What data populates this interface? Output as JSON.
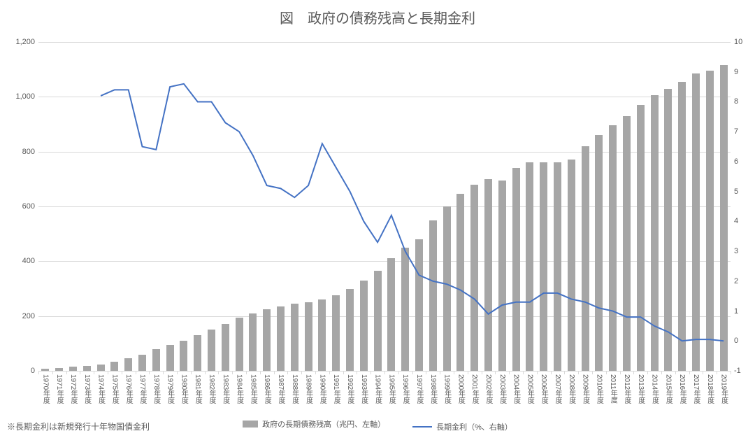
{
  "title": "図　政府の債務残高と長期金利",
  "footnote": "※長期金利は新規発行十年物国債金利",
  "legend": {
    "bar_label": "政府の長期債務残高（兆円、左軸）",
    "line_label": "長期金利（%、右軸）"
  },
  "chart": {
    "type": "bar+line",
    "background_color": "#ffffff",
    "grid_color": "#d9d9d9",
    "text_color": "#595959",
    "bar_color": "#a6a6a6",
    "line_color": "#4472c4",
    "line_width": 2,
    "bar_width_ratio": 0.55,
    "title_fontsize": 20,
    "axis_fontsize": 11,
    "xlabel_fontsize": 10,
    "y_left": {
      "min": 0,
      "max": 1200,
      "step": 200
    },
    "y_right": {
      "min": -1,
      "max": 10,
      "step": 1
    },
    "categories": [
      "1970年度",
      "1971年度",
      "1972年度",
      "1973年度",
      "1974年度",
      "1975年度",
      "1976年度",
      "1977年度",
      "1978年度",
      "1979年度",
      "1980年度",
      "1981年度",
      "1982年度",
      "1983年度",
      "1984年度",
      "1985年度",
      "1986年度",
      "1987年度",
      "1988年度",
      "1989年度",
      "1990年度",
      "1991年度",
      "1992年度",
      "1993年度",
      "1994年度",
      "1995年度",
      "1996年度",
      "1997年度",
      "1998年度",
      "1999年度",
      "2000年度",
      "2001年度",
      "2002年度",
      "2003年度",
      "2004年度",
      "2005年度",
      "2006年度",
      "2007年度",
      "2008年度",
      "2009年度",
      "2010年度",
      "2011年度",
      "2012年度",
      "2013年度",
      "2014年度",
      "2015年度",
      "2016年度",
      "2017年度",
      "2018年度",
      "2019年度"
    ],
    "bar_values": [
      8,
      10,
      15,
      18,
      22,
      32,
      45,
      60,
      80,
      95,
      110,
      130,
      150,
      170,
      195,
      210,
      225,
      235,
      245,
      250,
      260,
      275,
      300,
      330,
      365,
      410,
      450,
      480,
      550,
      600,
      645,
      680,
      700,
      695,
      740,
      760,
      760,
      760,
      770,
      820,
      860,
      895,
      930,
      970,
      1005,
      1030,
      1055,
      1085,
      1095,
      1115
    ],
    "line_values": [
      null,
      null,
      null,
      null,
      8.2,
      8.4,
      8.4,
      6.5,
      6.4,
      8.5,
      8.6,
      8.0,
      8.0,
      7.3,
      7.0,
      6.2,
      5.2,
      5.1,
      4.8,
      5.2,
      6.6,
      5.8,
      5.0,
      4.0,
      3.3,
      4.2,
      3.0,
      2.2,
      2.0,
      1.9,
      1.7,
      1.4,
      0.9,
      1.2,
      1.3,
      1.3,
      1.6,
      1.6,
      1.4,
      1.3,
      1.1,
      1.0,
      0.8,
      0.8,
      0.5,
      0.3,
      0.0,
      0.05,
      0.05,
      0.0
    ]
  }
}
